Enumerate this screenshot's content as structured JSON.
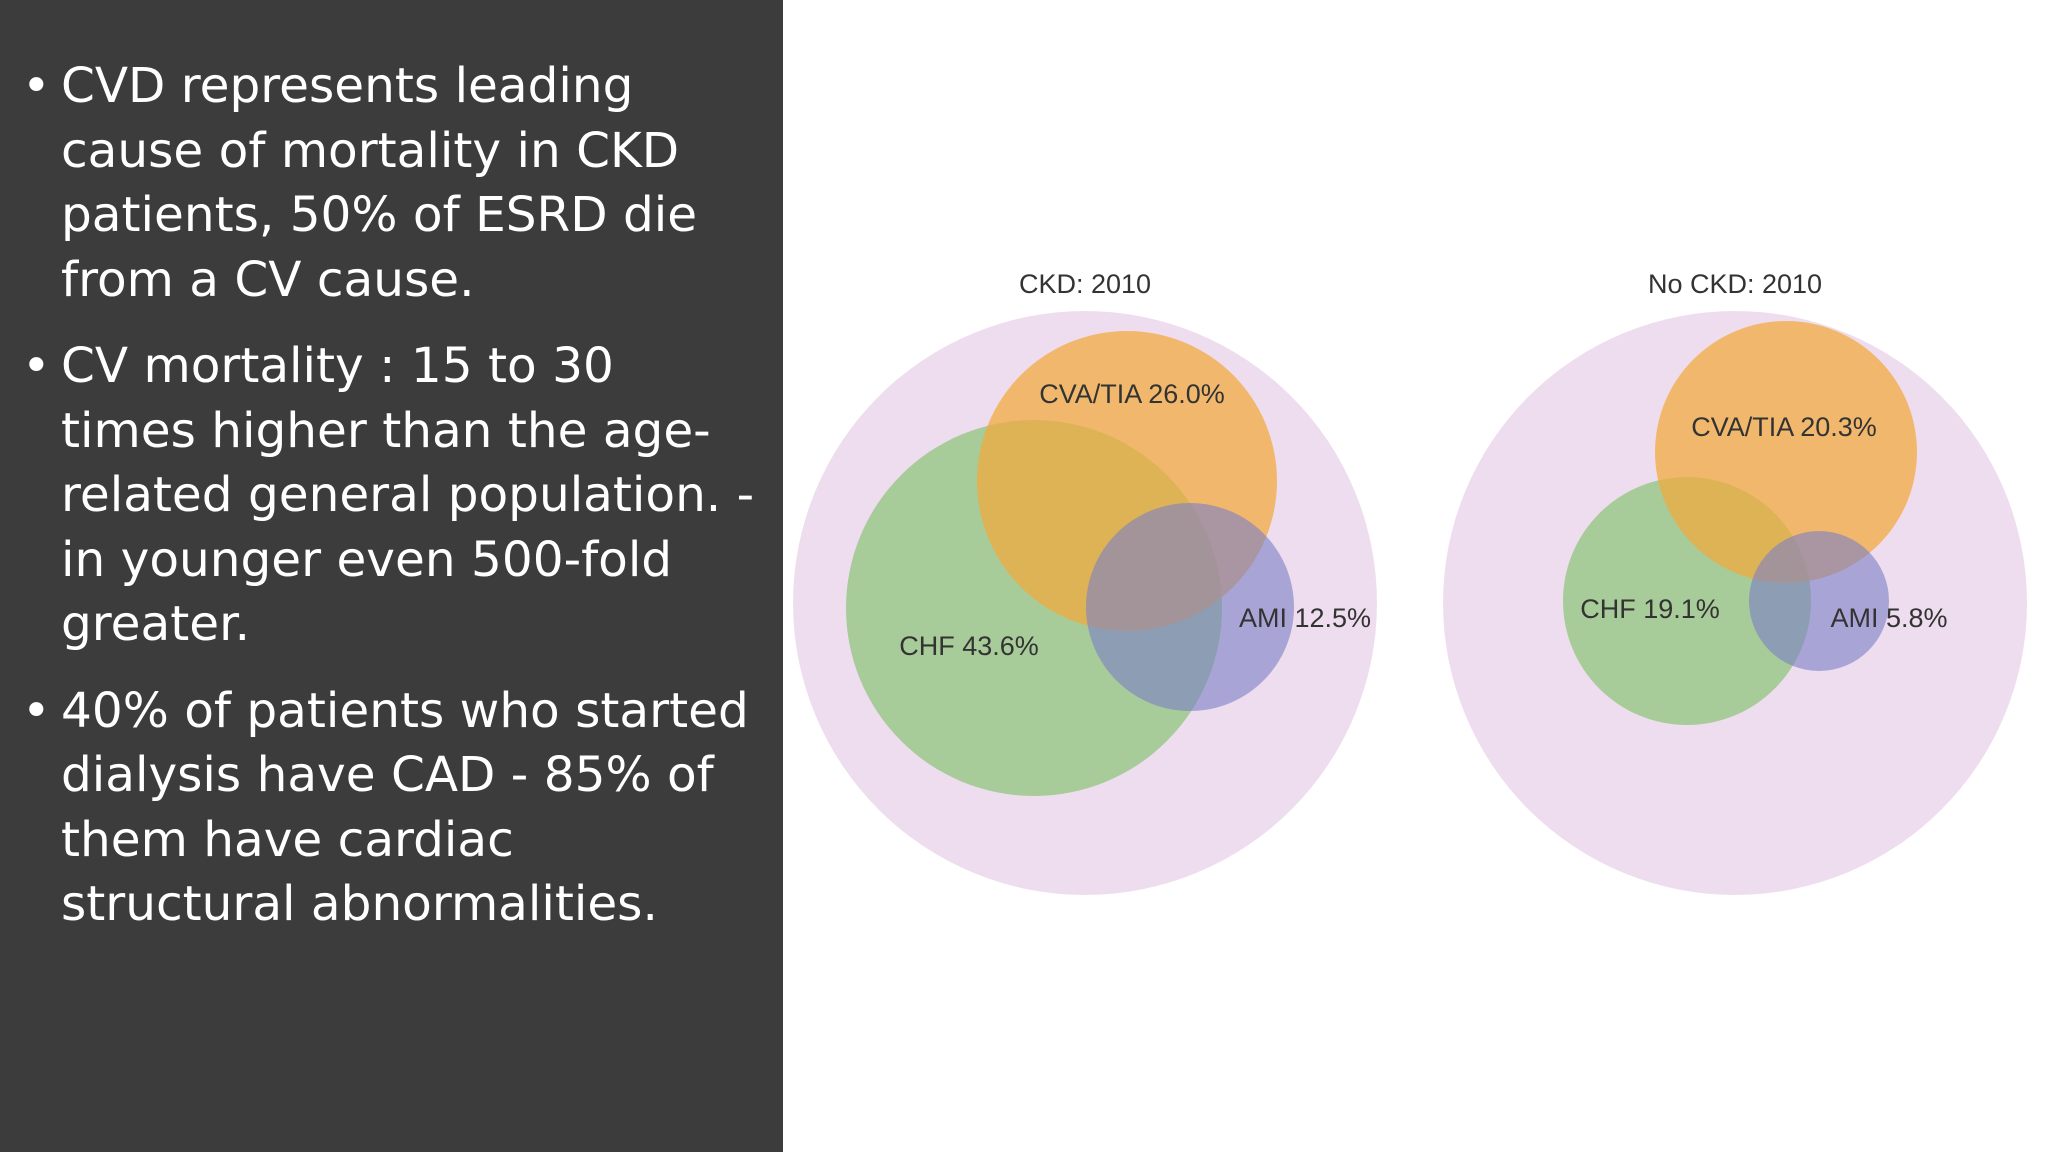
{
  "bullets": [
    "CVD represents leading cause of mortality in CKD patients, 50% of ESRD die from a CV cause.",
    "CV mortality : 15 to 30 times higher than the age-related general population. - in younger even 500-fold greater.",
    "40% of patients who started dialysis have CAD - 85% of them have cardiac structural abnormalities."
  ],
  "bullet_char": "•",
  "diagrams": [
    {
      "title": "CKD: 2010",
      "labels": {
        "cva": "CVA/TIA 26.0%",
        "chf": "CHF 43.6%",
        "ami": "AMI 12.5%"
      }
    },
    {
      "title": "No CKD: 2010",
      "labels": {
        "cva": "CVA/TIA 20.3%",
        "chf": "CHF 19.1%",
        "ami": "AMI 5.8%"
      }
    }
  ],
  "colors": {
    "panel_bg": "#3c3c3c",
    "outer": "#ecd9ec",
    "cva": "#f2a93b",
    "chf": "#8dc47a",
    "ami": "#7b7fc6"
  }
}
